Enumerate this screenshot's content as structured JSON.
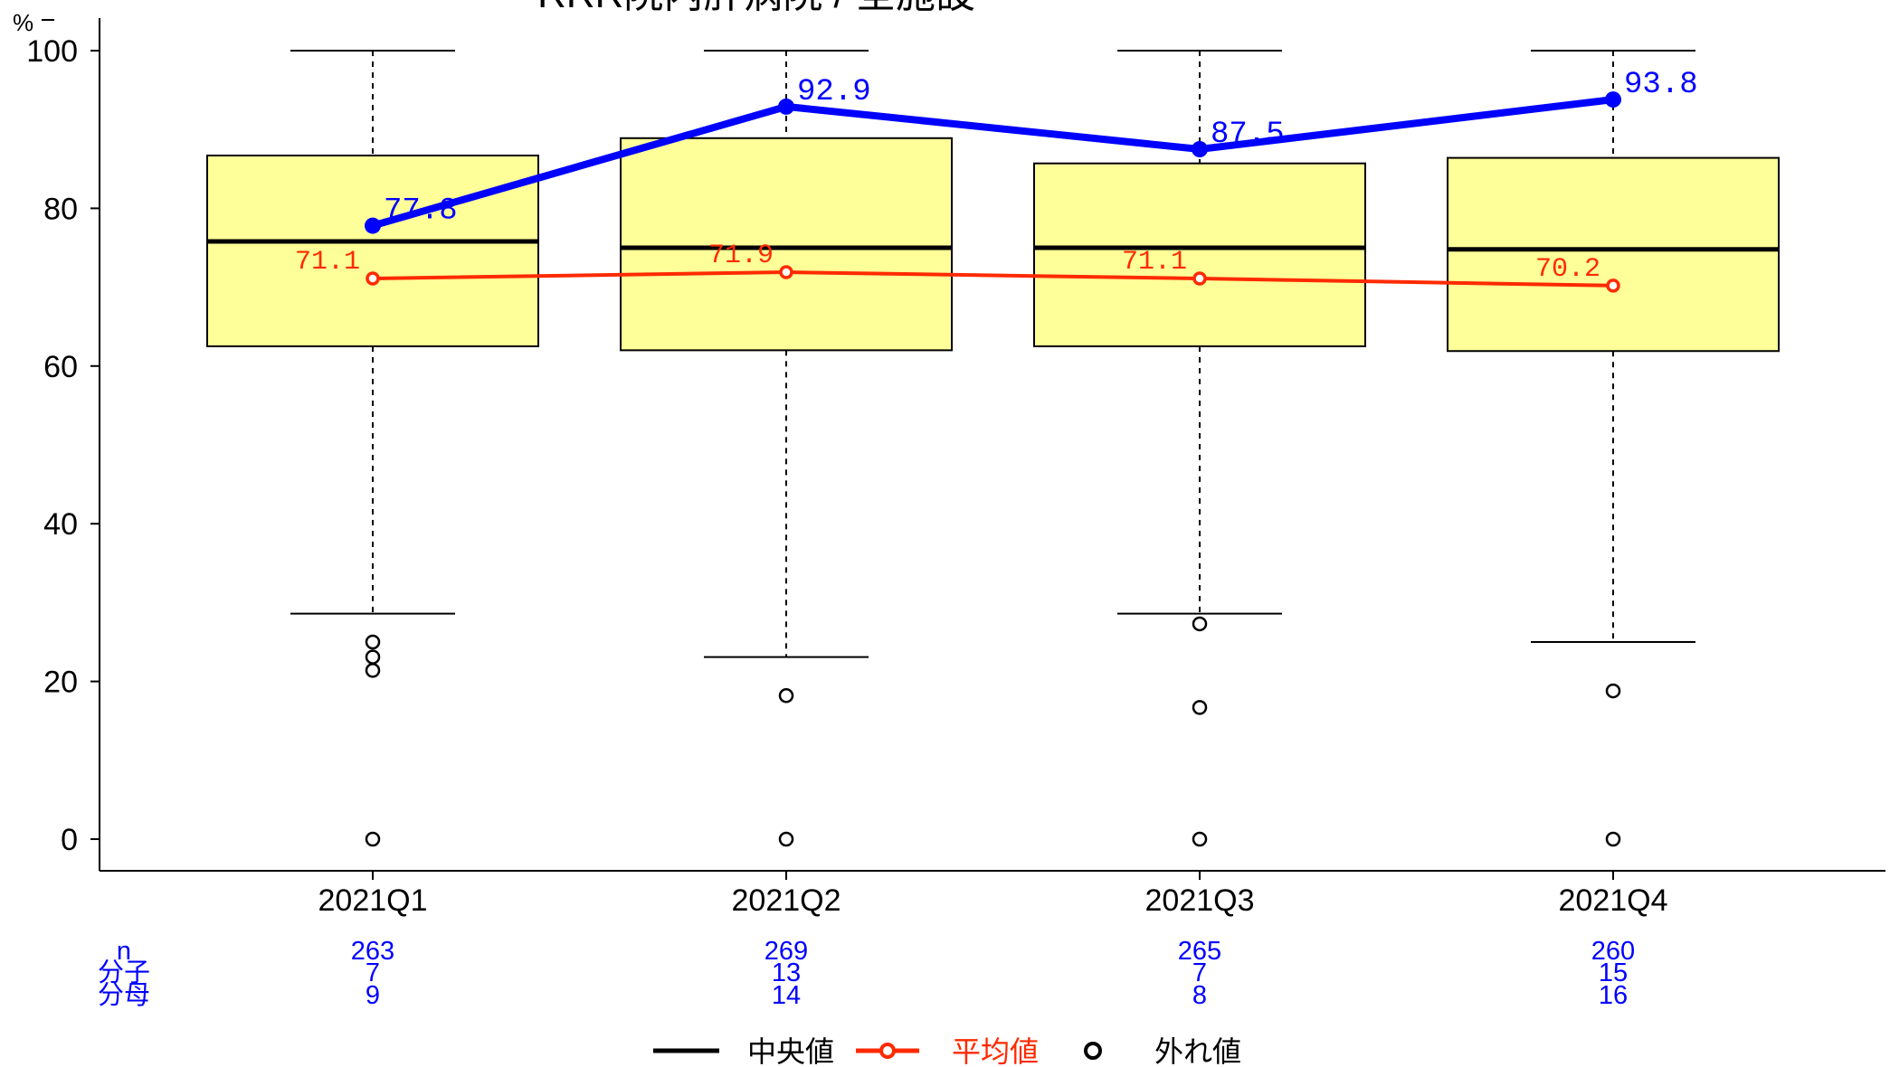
{
  "chart_data": {
    "type": "box",
    "title": "RRR院内肝病院 / 全施設",
    "ylabel": "%",
    "ylim": [
      0,
      100
    ],
    "yticks": [
      0,
      20,
      40,
      60,
      80,
      100
    ],
    "categories": [
      "2021Q1",
      "2021Q2",
      "2021Q3",
      "2021Q4"
    ],
    "boxes": [
      {
        "whisker_low": 28.6,
        "q1": 62.5,
        "median": 75.8,
        "q3": 86.7,
        "whisker_high": 100,
        "outliers": [
          25.0,
          23.1,
          21.4,
          0
        ]
      },
      {
        "whisker_low": 23.1,
        "q1": 62.0,
        "median": 75.0,
        "q3": 88.9,
        "whisker_high": 100,
        "outliers": [
          18.2,
          0
        ]
      },
      {
        "whisker_low": 28.6,
        "q1": 62.5,
        "median": 75.0,
        "q3": 85.7,
        "whisker_high": 100,
        "outliers": [
          27.3,
          16.7,
          0
        ]
      },
      {
        "whisker_low": 25.0,
        "q1": 61.9,
        "median": 74.8,
        "q3": 86.4,
        "whisker_high": 100,
        "outliers": [
          18.8,
          0
        ]
      }
    ],
    "series": [
      {
        "values": [
          77.8,
          92.9,
          87.5,
          93.8
        ],
        "labels": [
          "77.8",
          "92.9",
          "87.5",
          "93.8"
        ],
        "color": "#0000ff"
      },
      {
        "name": "平均値",
        "values": [
          71.1,
          71.9,
          71.1,
          70.2
        ],
        "labels": [
          "71.1",
          "71.9",
          "71.1",
          "70.2"
        ],
        "color": "#ff2a00"
      }
    ],
    "stats": {
      "row_labels": [
        "n",
        "分子",
        "分母"
      ],
      "n": [
        "263",
        "269",
        "265",
        "260"
      ],
      "numerator": [
        "7",
        "13",
        "7",
        "15"
      ],
      "denominator": [
        "9",
        "14",
        "8",
        "16"
      ]
    },
    "legend": {
      "position": "bottom",
      "items": [
        {
          "label": "中央値",
          "color": "#000000"
        },
        {
          "label": "平均値",
          "color": "#ff2a00"
        },
        {
          "label": "外れ値",
          "color": "#000000"
        }
      ]
    },
    "box_fill": "#ffff99",
    "grid": false
  }
}
